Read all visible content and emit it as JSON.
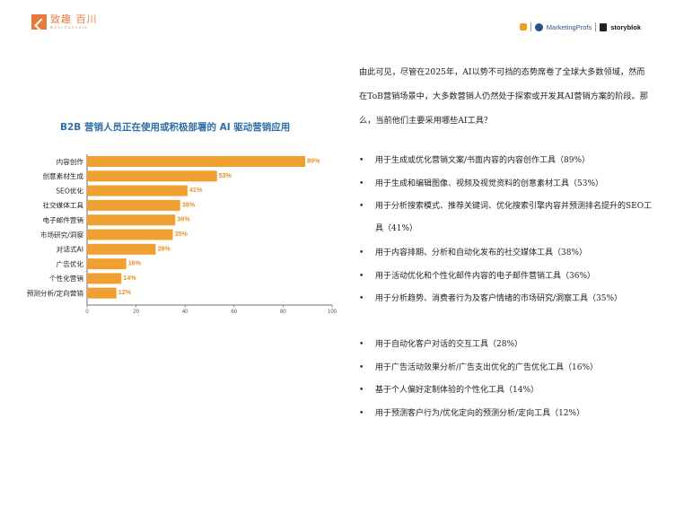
{
  "header": {
    "logo_cn": "致趣 百川",
    "logo_en": "Beschannels",
    "partner_marketing": "MarketingProfs",
    "partner_storyblok": "storyblok"
  },
  "intro_text": "由此可见，尽管在2025年，AI以势不可挡的态势席卷了全球大多数领域，然而在ToB营销场景中，大多数营销人仍然处于探索或开发其AI营销方案的阶段。那么，当前他们主要采用哪些AI工具？",
  "bullets": [
    "用于生成或优化营销文案/书面内容的内容创作工具（89%）",
    "用于生成和编辑图像、视频及视觉资料的创意素材工具（53%）",
    "用于分析搜索模式、推荐关键词、优化搜索引擎内容并预测排名提升的SEO工具（41%）",
    "用于内容排期、分析和自动化发布的社交媒体工具（38%）",
    "用于活动优化和个性化邮件内容的电子邮件营销工具（36%）",
    "用于分析趋势、消费者行为及客户情绪的市场研究/洞察工具（35%）",
    "用于自动化客户对话的交互工具（28%）",
    "用于广告活动效果分析/广告支出优化的广告优化工具（16%）",
    "基于个人偏好定制体验的个性化工具（14%）",
    "用于预测客户行为/优化定向的预测分析/定向工具（12%）"
  ],
  "chart_data": {
    "type": "bar",
    "orientation": "horizontal",
    "title": "B2B 营销人员正在使用或积极部署的 AI 驱动营销应用",
    "categories": [
      "内容创作",
      "创意素材生成",
      "SEO优化",
      "社交媒体工具",
      "电子邮件营销",
      "市场研究/洞察",
      "对话式AI",
      "广告优化",
      "个性化营销",
      "预测分析/定向营销"
    ],
    "values": [
      89,
      53,
      41,
      38,
      36,
      35,
      28,
      16,
      14,
      12
    ],
    "value_labels": [
      "89%",
      "53%",
      "41%",
      "38%",
      "36%",
      "35%",
      "28%",
      "16%",
      "14%",
      "12%"
    ],
    "xlim": [
      0,
      100
    ],
    "ticks": [
      "0",
      "20",
      "40",
      "60",
      "80",
      "100"
    ],
    "tick_values": [
      0,
      20,
      40,
      60,
      80,
      100
    ],
    "bar_color": "#f0a030",
    "title_color": "#2f6ea8",
    "label_color": "#e8912a",
    "grid": false
  }
}
